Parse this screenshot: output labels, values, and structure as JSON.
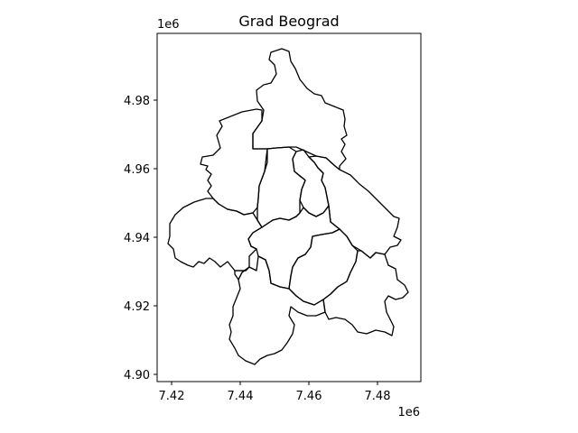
{
  "figure": {
    "title": "Grad Beograd"
  },
  "axes": {
    "x_offset_label": "1e6",
    "y_offset_label": "1e6",
    "x_ticks": [
      "7.42",
      "7.44",
      "7.46",
      "7.48"
    ],
    "y_ticks": [
      "4.98",
      "4.96",
      "4.94",
      "4.92",
      "4.90"
    ]
  },
  "map": {
    "region_outline_color": "#000000",
    "region_fill": "none",
    "region_count": 11
  }
}
